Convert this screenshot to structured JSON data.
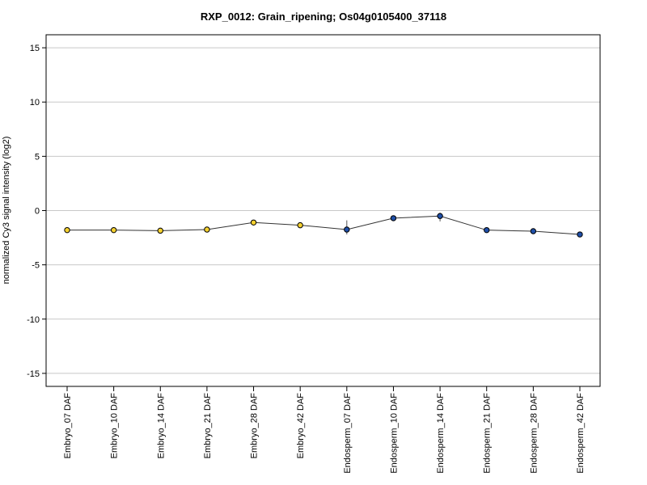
{
  "chart_data": {
    "type": "line",
    "title": "RXP_0012: Grain_ripening; Os04g0105400_37118",
    "xlabel": "",
    "ylabel": "normalized Cy3 signal intensity (log2)",
    "ylim": [
      -16.2,
      16.2
    ],
    "yticks": [
      15,
      10,
      5,
      0,
      -5,
      -10,
      -15
    ],
    "grid": true,
    "categories": [
      "Embryo_07 DAF",
      "Embryo_10 DAF",
      "Embryo_14 DAF",
      "Embryo_21 DAF",
      "Embryo_28 DAF",
      "Embryo_42 DAF",
      "Endosperm_07 DAF",
      "Endosperm_10 DAF",
      "Endosperm_14 DAF",
      "Endosperm_21 DAF",
      "Endosperm_28 DAF",
      "Endosperm_42 DAF"
    ],
    "series": [
      {
        "values": [
          -1.8,
          -1.8,
          -1.85,
          -1.75,
          -1.1,
          -1.35,
          -1.75,
          -0.7,
          -0.5,
          -1.8,
          -1.9,
          -2.2
        ],
        "error_low": [
          -2.0,
          -1.9,
          -1.95,
          -1.85,
          -1.2,
          -1.45,
          -2.2,
          -0.8,
          -1.0,
          -1.9,
          -2.0,
          -2.3
        ],
        "error_high": [
          -1.6,
          -1.7,
          -1.75,
          -1.65,
          -1.0,
          -1.25,
          -0.9,
          -0.6,
          -0.2,
          -1.7,
          -1.8,
          -2.1
        ],
        "point_colors": [
          "#f5d130",
          "#f5d130",
          "#f5d130",
          "#f5d130",
          "#f5d130",
          "#f5d130",
          "#1f4fa8",
          "#1f4fa8",
          "#1f4fa8",
          "#1f4fa8",
          "#1f4fa8",
          "#1f4fa8"
        ],
        "line_color": "#333333"
      }
    ]
  }
}
